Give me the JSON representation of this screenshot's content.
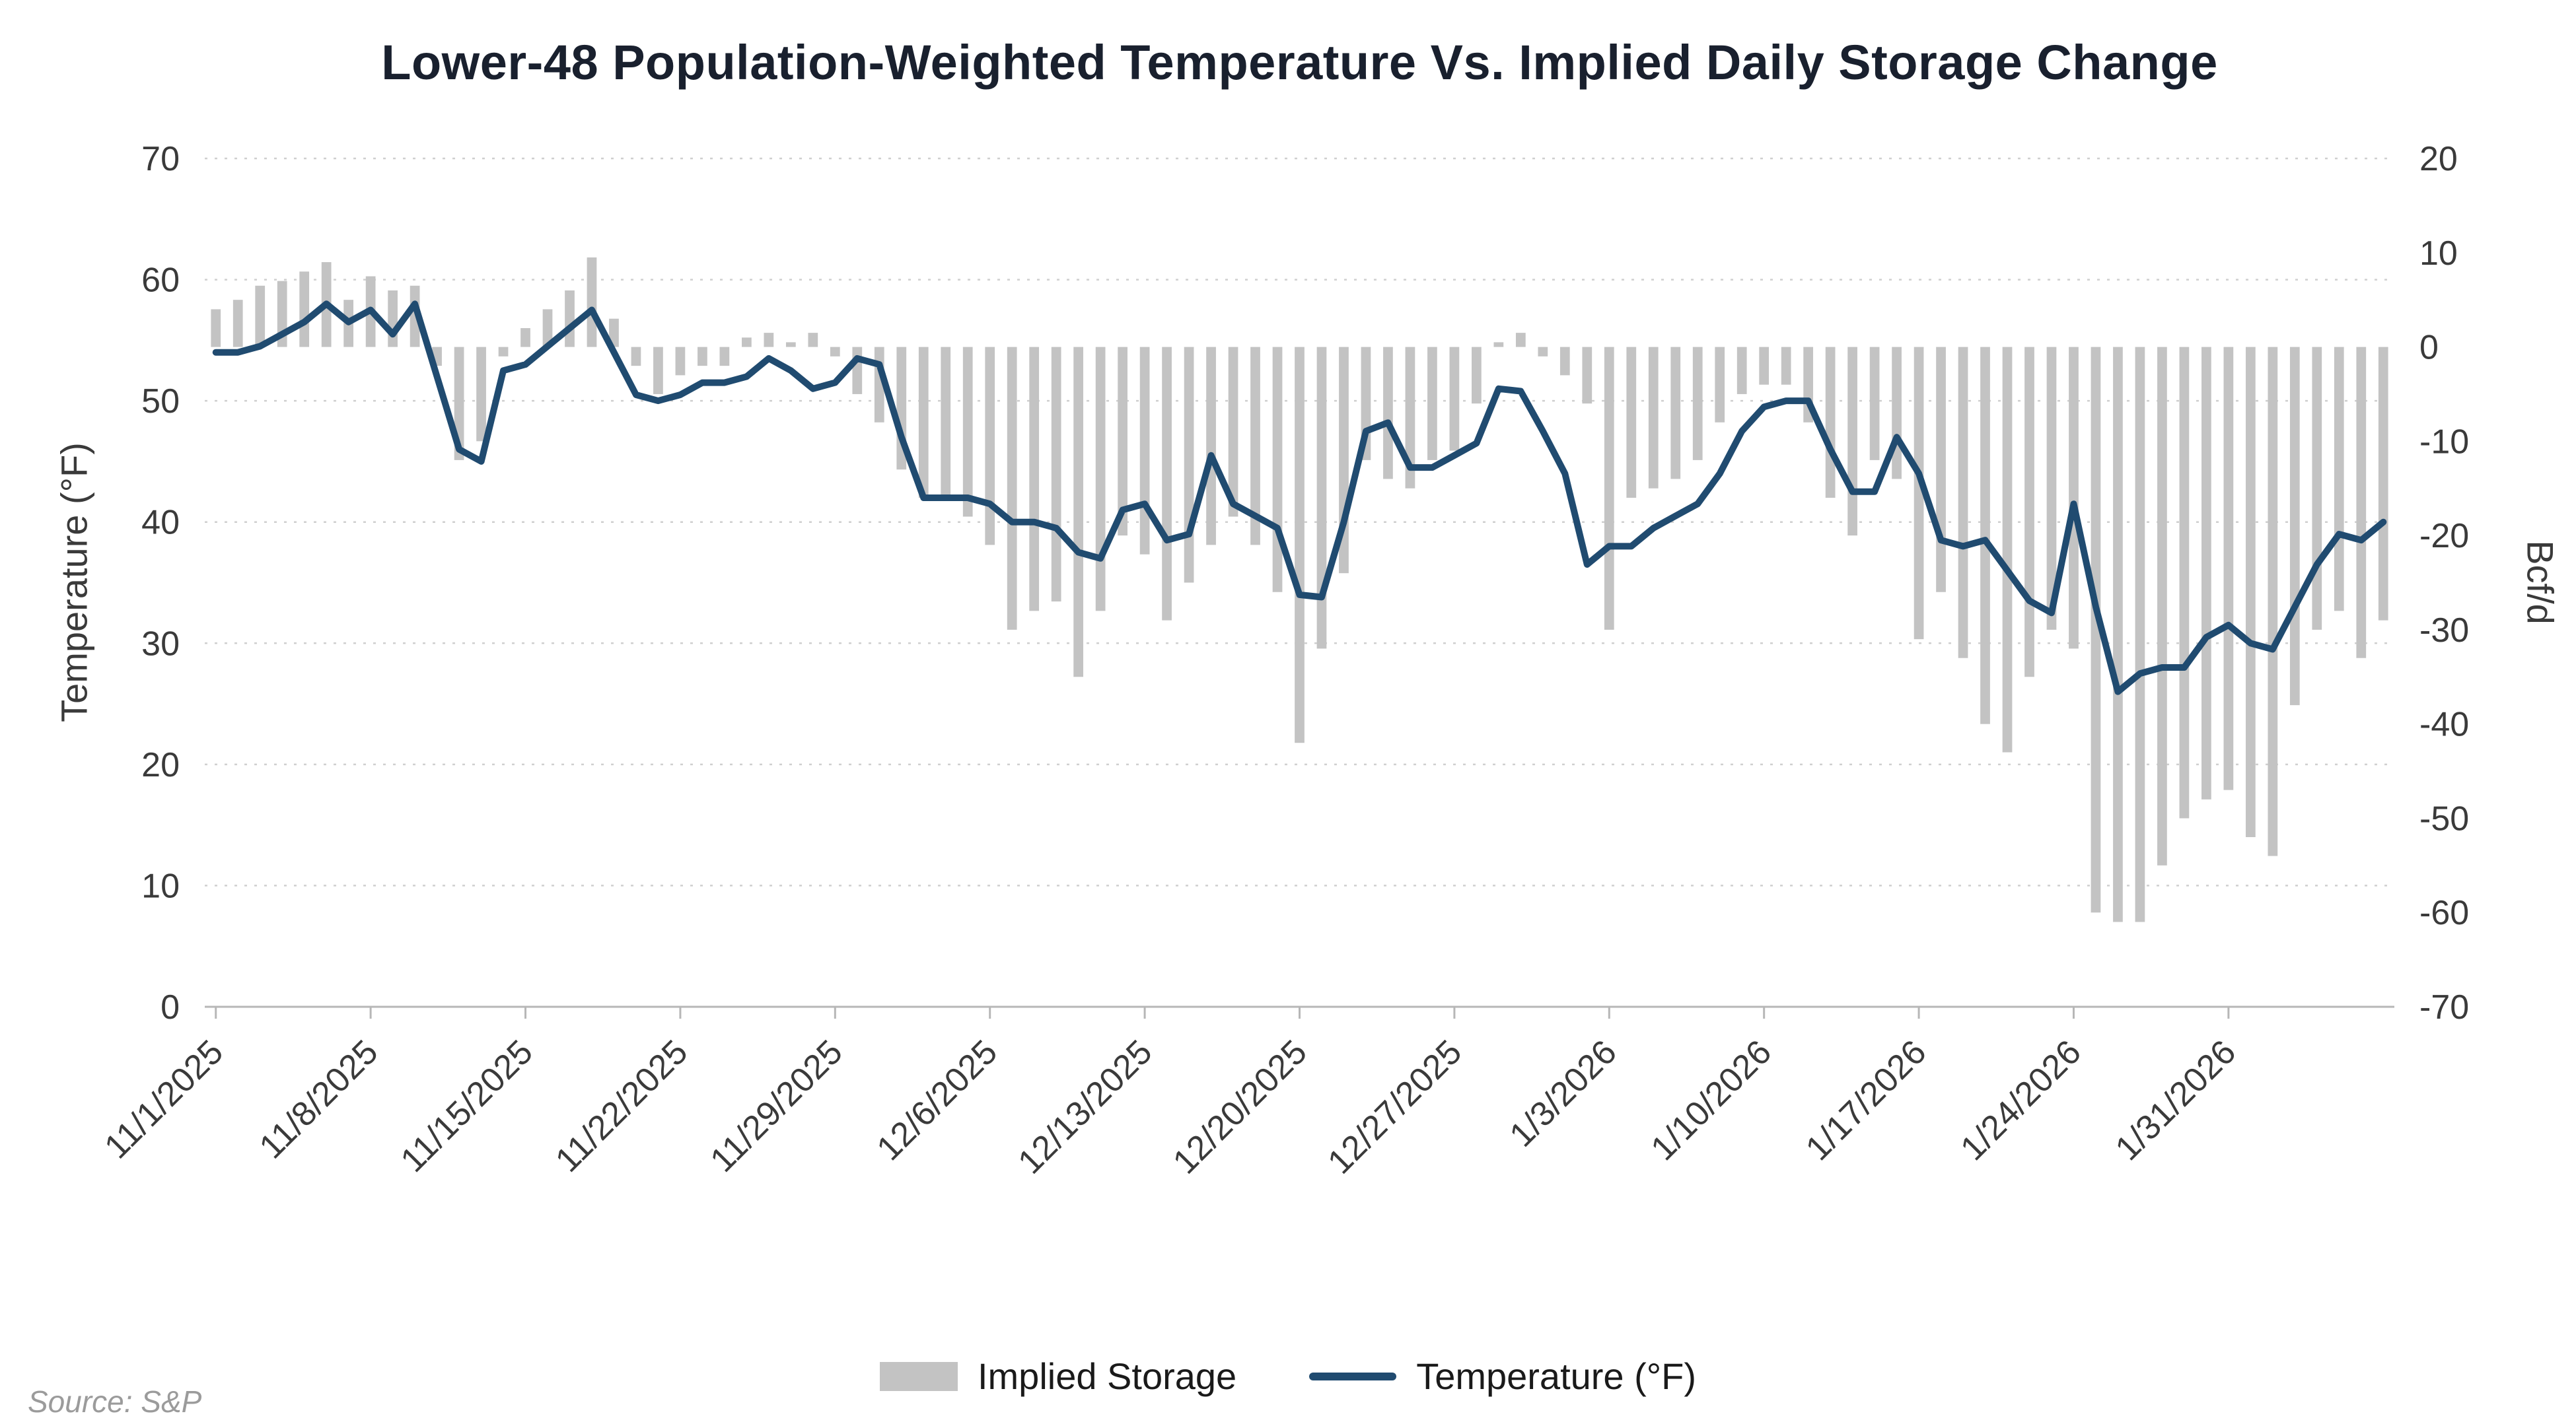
{
  "page": {
    "background": "#ffffff"
  },
  "source_note": "Source: S&P",
  "legend": [
    {
      "type": "bar",
      "label": "Implied Storage",
      "color": "#c3c3c3"
    },
    {
      "type": "line",
      "label": "Temperature (°F)",
      "color": "#204b70"
    }
  ],
  "chart_data": {
    "type": "combo-bar-line",
    "title": "Lower-48 Population-Weighted Temperature Vs. Implied Daily Storage Change",
    "ylabel_left": "Temperature (°F)",
    "ylabel_right": "Bcf/d",
    "grid": "horizontal-dotted",
    "grid_color": "#cfcfcf",
    "axis_color": "#b7b7b7",
    "tick_color": "#3a3a3a",
    "legend_position": "bottom",
    "y_left": {
      "min": 0,
      "max": 70,
      "ticks": [
        0,
        10,
        20,
        30,
        40,
        50,
        60,
        70
      ]
    },
    "y_right": {
      "min": -70,
      "max": 20,
      "ticks": [
        20,
        10,
        0,
        -10,
        -20,
        -30,
        -40,
        -50,
        -60,
        -70
      ]
    },
    "x_tick_labels": [
      "11/1/2025",
      "11/8/2025",
      "11/15/2025",
      "11/22/2025",
      "11/29/2025",
      "12/6/2025",
      "12/13/2025",
      "12/20/2025",
      "12/27/2025",
      "1/3/2026",
      "1/10/2026",
      "1/17/2026",
      "1/24/2026",
      "1/31/2026"
    ],
    "x_tick_indices": [
      0,
      7,
      14,
      21,
      28,
      35,
      42,
      49,
      56,
      63,
      70,
      77,
      84,
      91
    ],
    "dates": [
      "11/1/2025",
      "11/2/2025",
      "11/3/2025",
      "11/4/2025",
      "11/5/2025",
      "11/6/2025",
      "11/7/2025",
      "11/8/2025",
      "11/9/2025",
      "11/10/2025",
      "11/11/2025",
      "11/12/2025",
      "11/13/2025",
      "11/14/2025",
      "11/15/2025",
      "11/16/2025",
      "11/17/2025",
      "11/18/2025",
      "11/19/2025",
      "11/20/2025",
      "11/21/2025",
      "11/22/2025",
      "11/23/2025",
      "11/24/2025",
      "11/25/2025",
      "11/26/2025",
      "11/27/2025",
      "11/28/2025",
      "11/29/2025",
      "11/30/2025",
      "12/1/2025",
      "12/2/2025",
      "12/3/2025",
      "12/4/2025",
      "12/5/2025",
      "12/6/2025",
      "12/7/2025",
      "12/8/2025",
      "12/9/2025",
      "12/10/2025",
      "12/11/2025",
      "12/12/2025",
      "12/13/2025",
      "12/14/2025",
      "12/15/2025",
      "12/16/2025",
      "12/17/2025",
      "12/18/2025",
      "12/19/2025",
      "12/20/2025",
      "12/21/2025",
      "12/22/2025",
      "12/23/2025",
      "12/24/2025",
      "12/25/2025",
      "12/26/2025",
      "12/27/2025",
      "12/28/2025",
      "12/29/2025",
      "12/30/2025",
      "12/31/2025",
      "1/1/2026",
      "1/2/2026",
      "1/3/2026",
      "1/4/2026",
      "1/5/2026",
      "1/6/2026",
      "1/7/2026",
      "1/8/2026",
      "1/9/2026",
      "1/10/2026",
      "1/11/2026",
      "1/12/2026",
      "1/13/2026",
      "1/14/2026",
      "1/15/2026",
      "1/16/2026",
      "1/17/2026",
      "1/18/2026",
      "1/19/2026",
      "1/20/2026",
      "1/21/2026",
      "1/22/2026",
      "1/23/2026",
      "1/24/2026",
      "1/25/2026",
      "1/26/2026",
      "1/27/2026",
      "1/28/2026",
      "1/29/2026",
      "1/30/2026",
      "1/31/2026",
      "2/1/2026",
      "2/2/2026",
      "2/3/2026",
      "2/4/2026",
      "2/5/2026",
      "2/6/2026",
      "2/7/2026"
    ],
    "series": [
      {
        "name": "Implied Storage",
        "type": "bar",
        "axis": "right",
        "units": "Bcf/d",
        "color": "#c3c3c3",
        "values": [
          4,
          5,
          6.5,
          7,
          8,
          9,
          5,
          7.5,
          6,
          6.5,
          -2,
          -12,
          -10,
          -1,
          2,
          4,
          6,
          9.5,
          3,
          -2,
          -5,
          -3,
          -2,
          -2,
          1,
          1.5,
          0.5,
          1.5,
          -1,
          -5,
          -8,
          -13,
          -16,
          -16,
          -18,
          -21,
          -30,
          -28,
          -27,
          -35,
          -28,
          -20,
          -22,
          -29,
          -25,
          -21,
          -18,
          -21,
          -26,
          -42,
          -32,
          -24,
          -12,
          -14,
          -15,
          -12,
          -11,
          -6,
          0.5,
          1.5,
          -1,
          -3,
          -6,
          -30,
          -16,
          -15,
          -14,
          -12,
          -8,
          -5,
          -4,
          -4,
          -8,
          -16,
          -20,
          -12,
          -14,
          -31,
          -26,
          -33,
          -40,
          -43,
          -35,
          -30,
          -32,
          -60,
          -61,
          -61,
          -55,
          -50,
          -48,
          -47,
          -52,
          -54,
          -38,
          -30,
          -28,
          -33,
          -29
        ]
      },
      {
        "name": "Temperature (°F)",
        "type": "line",
        "axis": "left",
        "units": "°F",
        "color": "#204b70",
        "values": [
          54,
          54,
          54.5,
          55.5,
          56.5,
          58,
          56.5,
          57.5,
          55.5,
          58,
          52,
          46,
          45,
          52.5,
          53,
          54.5,
          56,
          57.5,
          54,
          50.5,
          50,
          50.5,
          51.5,
          51.5,
          52,
          53.5,
          52.5,
          51,
          51.5,
          53.5,
          53,
          47,
          42,
          42,
          42,
          41.5,
          40,
          40,
          39.5,
          37.5,
          37,
          41,
          41.5,
          38.5,
          39,
          45.5,
          41.5,
          40.5,
          39.5,
          34,
          33.8,
          40,
          47.5,
          48.2,
          44.5,
          44.5,
          45.5,
          46.5,
          51,
          50.8,
          47.5,
          44,
          36.5,
          38,
          38,
          39.5,
          40.5,
          41.5,
          44,
          47.5,
          49.5,
          50,
          50,
          46,
          42.5,
          42.5,
          47,
          44,
          38.5,
          38,
          38.5,
          36,
          33.5,
          32.5,
          41.5,
          33,
          26,
          27.5,
          28,
          28,
          30.5,
          31.5,
          30,
          29.5,
          33,
          36.5,
          39,
          38.5,
          40
        ]
      }
    ]
  }
}
